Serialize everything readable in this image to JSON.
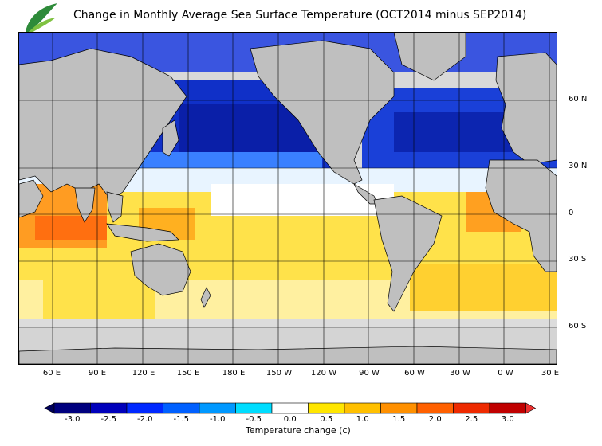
{
  "title": "Change in Monthly Average Sea Surface Temperature (OCT2014 minus SEP2014)",
  "latitude_labels": [
    "60 N",
    "30 N",
    "0",
    "30 S",
    "60 S"
  ],
  "longitude_labels": [
    "60 E",
    "90 E",
    "120 E",
    "150 E",
    "180 E",
    "150 W",
    "120 W",
    "90 W",
    "60 W",
    "30 W",
    "0 W",
    "30 E"
  ],
  "colorbar": {
    "title": "Temperature change  (c)",
    "ticks": [
      "-3.0",
      "-2.5",
      "-2.0",
      "-1.5",
      "-1.0",
      "-0.5",
      "0.0",
      "0.5",
      "1.0",
      "1.5",
      "2.0",
      "2.5",
      "3.0"
    ],
    "colors": [
      "#00007e",
      "#0000bb",
      "#0028ff",
      "#0060ff",
      "#0098ff",
      "#00ddff",
      "#ffffff",
      "#ffe600",
      "#ffc000",
      "#ff9000",
      "#ff6000",
      "#ee2a00",
      "#c00000"
    ],
    "extend_colors": {
      "low": "#00005a",
      "high": "#ee3030"
    }
  },
  "map_colors": {
    "land": "#bfbfbf",
    "ice": "#dcdcdc",
    "grid": "#000000"
  },
  "logo": {
    "name": "leaf-logo",
    "colors": [
      "#2e8b3a",
      "#7fc241"
    ]
  }
}
